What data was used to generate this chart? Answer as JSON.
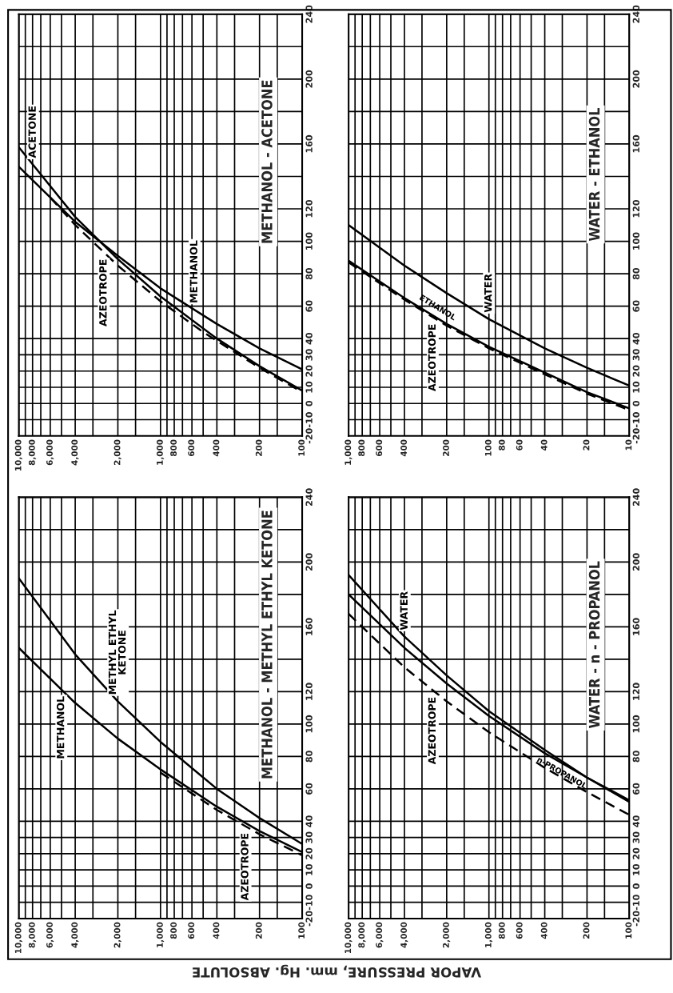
{
  "chart_data": [
    {
      "type": "line",
      "title": "METHANOL - ACETONE",
      "log": "x",
      "grid": true,
      "xlim": [
        10000,
        100
      ],
      "ylim": [
        -20,
        240
      ],
      "xticks": [
        {
          "value": 10000,
          "label": "10,000"
        },
        {
          "value": 9000,
          "label": null
        },
        {
          "value": 8000,
          "label": "8,000"
        },
        {
          "value": 7000,
          "label": null
        },
        {
          "value": 6000,
          "label": "6,000"
        },
        {
          "value": 5000,
          "label": null
        },
        {
          "value": 4000,
          "label": "4,000"
        },
        {
          "value": 3000,
          "label": null
        },
        {
          "value": 2000,
          "label": "2,000"
        },
        {
          "value": 1500,
          "label": null
        },
        {
          "value": 1000,
          "label": "1,000"
        },
        {
          "value": 900,
          "label": null
        },
        800,
        {
          "value": 700,
          "label": null
        },
        600,
        {
          "value": 500,
          "label": null
        },
        400,
        {
          "value": 300,
          "label": null
        },
        200,
        {
          "value": 150,
          "label": null
        },
        100
      ],
      "yticks": [
        -20,
        -10,
        0,
        10,
        20,
        30,
        40,
        60,
        80,
        100,
        120,
        {
          "value": 140,
          "label": null
        },
        160,
        {
          "value": 180,
          "label": null
        },
        200,
        {
          "value": 220,
          "label": null
        },
        240
      ],
      "series": [
        {
          "name": "ACETONE",
          "color": "#000000",
          "x": [
            10000,
            4000,
            2000,
            1000,
            400,
            200,
            100
          ],
          "values": [
            158,
            115,
            89,
            66,
            40,
            23,
            8
          ]
        },
        {
          "name": "METHANOL",
          "color": "#000000",
          "x": [
            10000,
            4000,
            2000,
            1000,
            400,
            200,
            100
          ],
          "values": [
            146,
            112,
            91,
            71,
            49,
            34,
            21
          ]
        },
        {
          "name": "AZEOTROPE",
          "color": "#000000",
          "line_style": "dashed",
          "x": [
            6000,
            4000,
            2000,
            1000,
            500,
            200,
            100
          ],
          "values": [
            127,
            110,
            85,
            63,
            44,
            22,
            7
          ]
        }
      ]
    },
    {
      "type": "line",
      "title": "WATER - ETHANOL",
      "log": "x",
      "grid": true,
      "xlim": [
        1000,
        10
      ],
      "ylim": [
        -20,
        240
      ],
      "xticks": [
        {
          "value": 1000,
          "label": "1,000"
        },
        {
          "value": 900,
          "label": null
        },
        800,
        {
          "value": 700,
          "label": null
        },
        600,
        {
          "value": 500,
          "label": null
        },
        400,
        {
          "value": 300,
          "label": null
        },
        200,
        {
          "value": 150,
          "label": null
        },
        100,
        {
          "value": 90,
          "label": null
        },
        80,
        {
          "value": 70,
          "label": null
        },
        60,
        {
          "value": 50,
          "label": null
        },
        40,
        {
          "value": 30,
          "label": null
        },
        20,
        {
          "value": 15,
          "label": null
        },
        10
      ],
      "yticks": [
        -20,
        -10,
        0,
        10,
        20,
        30,
        40,
        60,
        80,
        100,
        120,
        {
          "value": 140,
          "label": null
        },
        160,
        {
          "value": 180,
          "label": null
        },
        200,
        {
          "value": 220,
          "label": null
        },
        240
      ],
      "series": [
        {
          "name": "WATER",
          "color": "#000000",
          "x": [
            1000,
            400,
            200,
            100,
            40,
            20,
            10
          ],
          "values": [
            110,
            85,
            68,
            52,
            34,
            22,
            11
          ]
        },
        {
          "name": "ETHANOL",
          "color": "#000000",
          "x": [
            1000,
            400,
            200,
            100,
            40,
            20,
            10
          ],
          "values": [
            88,
            65,
            49,
            35,
            19,
            7,
            -3
          ]
        },
        {
          "name": "AZEOTROPE",
          "color": "#000000",
          "line_style": "dashed",
          "x": [
            1000,
            400,
            200,
            100,
            40,
            20,
            10
          ],
          "values": [
            87,
            64,
            48,
            34,
            18,
            6,
            -4
          ]
        }
      ]
    },
    {
      "type": "line",
      "title": "METHANOL - METHYL ETHYL KETONE",
      "xlabel": "VAPOR PRESSURE, mm. Hg. ABSOLUTE",
      "log": "x",
      "grid": true,
      "xlim": [
        10000,
        100
      ],
      "ylim": [
        -20,
        240
      ],
      "xticks": [
        {
          "value": 10000,
          "label": "10,000"
        },
        {
          "value": 9000,
          "label": null
        },
        {
          "value": 8000,
          "label": "8,000"
        },
        {
          "value": 7000,
          "label": null
        },
        {
          "value": 6000,
          "label": "6,000"
        },
        {
          "value": 5000,
          "label": null
        },
        {
          "value": 4000,
          "label": "4,000"
        },
        {
          "value": 3000,
          "label": null
        },
        {
          "value": 2000,
          "label": "2,000"
        },
        {
          "value": 1500,
          "label": null
        },
        {
          "value": 1000,
          "label": "1,000"
        },
        {
          "value": 900,
          "label": null
        },
        800,
        {
          "value": 700,
          "label": null
        },
        600,
        {
          "value": 500,
          "label": null
        },
        400,
        {
          "value": 300,
          "label": null
        },
        200,
        {
          "value": 150,
          "label": null
        },
        100
      ],
      "yticks": [
        -20,
        -10,
        0,
        10,
        20,
        30,
        40,
        60,
        80,
        100,
        120,
        {
          "value": 140,
          "label": null
        },
        160,
        {
          "value": 180,
          "label": null
        },
        200,
        {
          "value": 220,
          "label": null
        },
        240
      ],
      "series": [
        {
          "name": "METHYL ETHYL\nKETONE",
          "color": "#000000",
          "x": [
            10000,
            4000,
            2000,
            1000,
            400,
            200,
            100
          ],
          "values": [
            190,
            143,
            114,
            89,
            60,
            42,
            26
          ]
        },
        {
          "name": "METHANOL",
          "color": "#000000",
          "x": [
            10000,
            4000,
            2000,
            1000,
            400,
            200,
            100
          ],
          "values": [
            147,
            113,
            91,
            72,
            49,
            34,
            21
          ]
        },
        {
          "name": "AZEOTROPE",
          "color": "#000000",
          "line_style": "dashed",
          "x": [
            1000,
            400,
            200,
            100
          ],
          "values": [
            70,
            47,
            32,
            19
          ]
        }
      ]
    },
    {
      "type": "line",
      "title": "WATER - n - PROPANOL",
      "log": "x",
      "grid": true,
      "xlim": [
        10000,
        100
      ],
      "ylim": [
        -20,
        240
      ],
      "xticks": [
        {
          "value": 10000,
          "label": "10,000"
        },
        {
          "value": 9000,
          "label": null
        },
        {
          "value": 8000,
          "label": "8,000"
        },
        {
          "value": 7000,
          "label": null
        },
        {
          "value": 6000,
          "label": "6,000"
        },
        {
          "value": 5000,
          "label": null
        },
        {
          "value": 4000,
          "label": "4,000"
        },
        {
          "value": 3000,
          "label": null
        },
        {
          "value": 2000,
          "label": "2,000"
        },
        {
          "value": 1500,
          "label": null
        },
        {
          "value": 1000,
          "label": "1,000"
        },
        {
          "value": 900,
          "label": null
        },
        800,
        {
          "value": 700,
          "label": null
        },
        600,
        {
          "value": 500,
          "label": null
        },
        400,
        {
          "value": 300,
          "label": null
        },
        200,
        {
          "value": 150,
          "label": null
        },
        100
      ],
      "yticks": [
        -20,
        -10,
        0,
        10,
        20,
        30,
        40,
        60,
        80,
        100,
        120,
        {
          "value": 140,
          "label": null
        },
        160,
        {
          "value": 180,
          "label": null
        },
        200,
        {
          "value": 220,
          "label": null
        },
        240
      ],
      "series": [
        {
          "name": "WATER",
          "color": "#000000",
          "x": [
            10000,
            4000,
            2000,
            1000,
            400,
            200,
            100
          ],
          "values": [
            192,
            154,
            130,
            108,
            84,
            67,
            52
          ]
        },
        {
          "name": "n-PROPANOL",
          "color": "#000000",
          "x": [
            10000,
            4000,
            2000,
            1000,
            400,
            200,
            100
          ],
          "values": [
            180,
            147,
            125,
            105,
            82,
            67,
            53
          ]
        },
        {
          "name": "AZEOTROPE",
          "color": "#000000",
          "line_style": "dashed",
          "x": [
            10000,
            4000,
            2000,
            1000,
            400,
            200,
            100
          ],
          "values": [
            168,
            135,
            114,
            95,
            73,
            58,
            44
          ]
        }
      ]
    }
  ]
}
